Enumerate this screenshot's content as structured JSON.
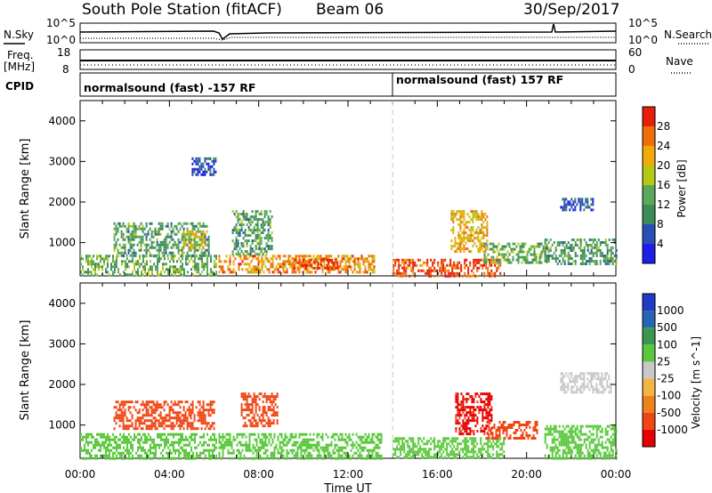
{
  "header": {
    "station": "South Pole Station (fitACF)",
    "beam": "Beam 06",
    "date": "30/Sep/2017"
  },
  "left_labels": {
    "nsky": "N.Sky",
    "freq_line1": "Freq.",
    "freq_line2": "[MHz]",
    "cpid": "CPID"
  },
  "right_labels": {
    "nsearch": "N.Search",
    "nave": "Nave"
  },
  "noise_panel": {
    "ytick_top": "10^5",
    "ytick_bottom": "10^0",
    "ytick_top_right": "10^5",
    "ytick_bottom_right": "10^0"
  },
  "freq_panel": {
    "ytick_top": "18",
    "ytick_bottom": "8",
    "ytick_top_right": "60",
    "ytick_bottom_right": "0"
  },
  "cpid_panel": {
    "segments": [
      {
        "label": "normalsound (fast) -157 RF",
        "start_hour": 0,
        "end_hour": 14
      },
      {
        "label": "normalsound (fast) 157 RF",
        "start_hour": 14,
        "end_hour": 24
      }
    ]
  },
  "colors": {
    "power": [
      "#1e1ee6",
      "#2850b4",
      "#3c8c5a",
      "#5aa85a",
      "#b4c814",
      "#f0aa0a",
      "#f06e0a",
      "#e61e0a"
    ],
    "velocity": [
      "#e60000",
      "#f04614",
      "#f0821e",
      "#f5b446",
      "#c8c8c8",
      "#5ac83c",
      "#3c9650",
      "#2864b4",
      "#1e3cc8"
    ],
    "cpid_divider": "#c8c8c8"
  },
  "chart_data": [
    {
      "type": "heatmap",
      "name": "power",
      "xlabel": "",
      "ylabel": "Slant Range [km]",
      "x_range_hours": [
        0,
        24
      ],
      "ylim": [
        180,
        4500
      ],
      "yticks": [
        "1000",
        "2000",
        "3000",
        "4000"
      ],
      "xtick_labels": [
        "00:00",
        "04:00",
        "08:00",
        "12:00",
        "16:00",
        "20:00",
        "00:00"
      ],
      "colorbar": {
        "label": "Power [dB]",
        "min": 0,
        "max": 32,
        "tick_labels": [
          "4",
          "8",
          "12",
          "16",
          "20",
          "24",
          "28"
        ]
      },
      "echo_regions": [
        {
          "t0": 0.0,
          "t1": 6.1,
          "r0": 200,
          "r1": 700,
          "value": 14
        },
        {
          "t0": 1.5,
          "t1": 5.8,
          "r0": 700,
          "r1": 1500,
          "value": 12
        },
        {
          "t0": 4.6,
          "t1": 5.6,
          "r0": 900,
          "r1": 1300,
          "value": 20
        },
        {
          "t0": 5.0,
          "t1": 6.1,
          "r0": 2700,
          "r1": 3100,
          "value": 6
        },
        {
          "t0": 6.2,
          "t1": 13.2,
          "r0": 250,
          "r1": 700,
          "value": 24
        },
        {
          "t0": 6.8,
          "t1": 8.6,
          "r0": 700,
          "r1": 1800,
          "value": 12
        },
        {
          "t0": 9.5,
          "t1": 11.5,
          "r0": 400,
          "r1": 600,
          "value": 28
        },
        {
          "t0": 14.0,
          "t1": 18.8,
          "r0": 200,
          "r1": 600,
          "value": 28
        },
        {
          "t0": 16.6,
          "t1": 18.2,
          "r0": 800,
          "r1": 1800,
          "value": 22
        },
        {
          "t0": 18.0,
          "t1": 21.0,
          "r0": 500,
          "r1": 1000,
          "value": 14
        },
        {
          "t0": 20.8,
          "t1": 24.0,
          "r0": 500,
          "r1": 1100,
          "value": 12
        },
        {
          "t0": 21.5,
          "t1": 23.0,
          "r0": 1800,
          "r1": 2100,
          "value": 6
        }
      ]
    },
    {
      "type": "heatmap",
      "name": "velocity",
      "xlabel": "Time UT",
      "ylabel": "Slant Range [km]",
      "x_range_hours": [
        0,
        24
      ],
      "ylim": [
        180,
        4500
      ],
      "yticks": [
        "1000",
        "2000",
        "3000",
        "4000"
      ],
      "xtick_labels": [
        "00:00",
        "04:00",
        "08:00",
        "12:00",
        "16:00",
        "20:00",
        "00:00"
      ],
      "colorbar": {
        "label": "Velocity [m s^-1]",
        "tick_labels": [
          "1000",
          "500",
          "100",
          "25",
          "-25",
          "-100",
          "-500",
          "-1000"
        ]
      },
      "echo_regions": [
        {
          "t0": 0.0,
          "t1": 6.1,
          "r0": 200,
          "r1": 800,
          "value": 60
        },
        {
          "t0": 1.5,
          "t1": 6.0,
          "r0": 900,
          "r1": 1600,
          "value": -250
        },
        {
          "t0": 6.2,
          "t1": 13.5,
          "r0": 200,
          "r1": 800,
          "value": 60
        },
        {
          "t0": 7.2,
          "t1": 8.8,
          "r0": 1000,
          "r1": 1800,
          "value": -250
        },
        {
          "t0": 14.0,
          "t1": 19.0,
          "r0": 200,
          "r1": 700,
          "value": 60
        },
        {
          "t0": 16.8,
          "t1": 18.4,
          "r0": 800,
          "r1": 1800,
          "value": -700
        },
        {
          "t0": 18.2,
          "t1": 20.5,
          "r0": 700,
          "r1": 1100,
          "value": -250
        },
        {
          "t0": 20.8,
          "t1": 24.0,
          "r0": 200,
          "r1": 1000,
          "value": 60
        },
        {
          "t0": 21.5,
          "t1": 23.8,
          "r0": 1800,
          "r1": 2300,
          "value": 12
        }
      ]
    }
  ]
}
